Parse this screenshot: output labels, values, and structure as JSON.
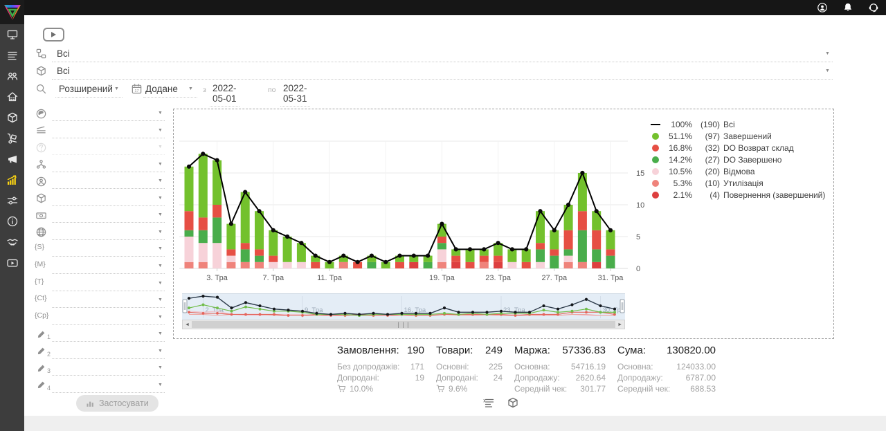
{
  "topbar": {
    "icons": [
      {
        "name": "user"
      },
      {
        "name": "bell"
      },
      {
        "name": "support"
      }
    ]
  },
  "sidebar": {
    "items": [
      {
        "icon": "monitor",
        "active": false
      },
      {
        "icon": "list",
        "active": false
      },
      {
        "icon": "people",
        "active": false
      },
      {
        "icon": "home",
        "active": false
      },
      {
        "icon": "package",
        "active": false
      },
      {
        "icon": "handtruck",
        "active": false
      },
      {
        "icon": "megaphone",
        "active": false
      },
      {
        "icon": "chart",
        "active": true
      },
      {
        "icon": "sliders",
        "active": false
      },
      {
        "icon": "info",
        "active": false
      },
      {
        "icon": "handshake",
        "active": false
      },
      {
        "icon": "video",
        "active": false
      }
    ]
  },
  "toolbar": {
    "status_filter": {
      "icon": "status-tree",
      "value": "Всі"
    },
    "product_filter": {
      "icon": "package",
      "value": "Всі"
    },
    "search_mode": {
      "icon": "search",
      "value": "Розширений"
    },
    "date_type": {
      "icon": "calendar",
      "calendar_day": "17",
      "value": "Додане"
    },
    "date_from_label": "з",
    "date_from": "2022-05-01",
    "date_to_label": "по",
    "date_to": "2022-05-31"
  },
  "filters": {
    "rows": [
      {
        "icon": "globe-solid",
        "value": ""
      },
      {
        "icon": "layers",
        "value": ""
      },
      {
        "icon": "question",
        "value": "",
        "disabled": true
      },
      {
        "icon": "hierarchy",
        "value": ""
      },
      {
        "icon": "person",
        "value": ""
      },
      {
        "icon": "package",
        "value": ""
      },
      {
        "icon": "money",
        "value": ""
      },
      {
        "icon": "globe",
        "value": ""
      },
      {
        "icon": "tag",
        "text": "{S}",
        "value": ""
      },
      {
        "icon": "tag",
        "text": "{M}",
        "value": ""
      },
      {
        "icon": "tag",
        "text": "{T}",
        "value": ""
      },
      {
        "icon": "tag",
        "text": "{Ct}",
        "value": ""
      },
      {
        "icon": "tag",
        "text": "{Cp}",
        "value": ""
      },
      {
        "icon": "pencil",
        "num": "1",
        "value": ""
      },
      {
        "icon": "pencil",
        "num": "2",
        "value": ""
      },
      {
        "icon": "pencil",
        "num": "3",
        "value": ""
      },
      {
        "icon": "pencil",
        "num": "4",
        "value": ""
      }
    ],
    "apply_label": "Застосувати"
  },
  "chart_data": {
    "type": "bar",
    "subtype": "stacked-bars-with-total-line",
    "x_days": [
      1,
      2,
      3,
      4,
      5,
      6,
      7,
      8,
      9,
      10,
      11,
      12,
      13,
      14,
      15,
      16,
      17,
      18,
      19,
      20,
      21,
      22,
      23,
      24,
      25,
      26,
      27,
      28,
      29,
      30,
      31
    ],
    "x_tick_labels": [
      {
        "day": 3,
        "label": "3. Тра"
      },
      {
        "day": 7,
        "label": "7. Тра"
      },
      {
        "day": 11,
        "label": "11. Тра"
      },
      {
        "day": 19,
        "label": "19. Тра"
      },
      {
        "day": 23,
        "label": "23. Тра"
      },
      {
        "day": 27,
        "label": "27. Тра"
      },
      {
        "day": 31,
        "label": "31. Тра"
      }
    ],
    "y_ticks": [
      0,
      5,
      10,
      15
    ],
    "ylim": [
      0,
      20
    ],
    "series": [
      {
        "name": "Всі",
        "type": "line",
        "color": "#000000",
        "percent": "100%",
        "count": 190,
        "values": [
          16,
          18,
          17,
          7,
          12,
          9,
          6,
          5,
          4,
          2,
          1,
          2,
          1,
          2,
          1,
          2,
          2,
          2,
          7,
          3,
          3,
          3,
          4,
          3,
          3,
          9,
          6,
          10,
          15,
          9,
          6
        ]
      },
      {
        "name": "Завершений",
        "type": "bar",
        "color": "#73c12d",
        "percent": "51.1%",
        "count": 97,
        "values": [
          7,
          10,
          7,
          4,
          8,
          6,
          4,
          4,
          3,
          1,
          1,
          1,
          0,
          1,
          1,
          1,
          1,
          1,
          2,
          1,
          2,
          1,
          2,
          2,
          2,
          5,
          3,
          4,
          6,
          3,
          3
        ]
      },
      {
        "name": "DO Возврат склад",
        "type": "bar",
        "color": "#e64f44",
        "percent": "16.8%",
        "count": 32,
        "values": [
          3,
          2,
          2,
          1,
          1,
          1,
          1,
          0,
          0,
          1,
          0,
          0,
          1,
          0,
          0,
          1,
          0,
          0,
          1,
          1,
          1,
          1,
          1,
          0,
          1,
          1,
          1,
          3,
          3,
          3,
          1
        ]
      },
      {
        "name": "DO Завершено",
        "type": "bar",
        "color": "#49ad4b",
        "percent": "14.2%",
        "count": 27,
        "values": [
          1,
          2,
          4,
          0,
          2,
          1,
          0,
          0,
          0,
          0,
          0,
          0,
          0,
          1,
          0,
          0,
          0,
          1,
          1,
          0,
          0,
          0,
          0,
          0,
          0,
          2,
          2,
          1,
          5,
          2,
          2
        ]
      },
      {
        "name": "Відмова",
        "type": "bar",
        "color": "#f7d2d9",
        "percent": "10.5%",
        "count": 20,
        "values": [
          4,
          3,
          4,
          1,
          0,
          0,
          1,
          1,
          1,
          0,
          0,
          0,
          0,
          0,
          0,
          0,
          0,
          0,
          2,
          0,
          0,
          0,
          0,
          1,
          0,
          1,
          0,
          1,
          0,
          0,
          0
        ]
      },
      {
        "name": "Утилізація",
        "type": "bar",
        "color": "#ef837b",
        "percent": "5.3%",
        "count": 10,
        "values": [
          1,
          1,
          0,
          1,
          1,
          1,
          0,
          0,
          0,
          0,
          0,
          1,
          0,
          0,
          0,
          0,
          0,
          0,
          1,
          0,
          0,
          1,
          0,
          0,
          0,
          0,
          0,
          1,
          1,
          0,
          0
        ]
      },
      {
        "name": "Повернення (завершений)",
        "type": "bar",
        "color": "#dd3f3f",
        "percent": "2.1%",
        "count": 4,
        "values": [
          0,
          0,
          0,
          0,
          0,
          0,
          0,
          0,
          0,
          0,
          0,
          0,
          0,
          0,
          0,
          0,
          1,
          0,
          0,
          1,
          0,
          0,
          1,
          0,
          0,
          0,
          0,
          0,
          0,
          1,
          0
        ]
      }
    ],
    "stack_order_bottom_to_top": [
      "Повернення (завершений)",
      "Утилізація",
      "Відмова",
      "DO Завершено",
      "DO Возврат склад",
      "Завершений"
    ],
    "navigator_labels": [
      {
        "day": 2,
        "label": "2. Тра"
      },
      {
        "day": 9,
        "label": "9. Тра"
      },
      {
        "day": 16,
        "label": "16. Тра"
      },
      {
        "day": 23,
        "label": "23. Тра"
      },
      {
        "day": 30,
        "label": "30. Тра"
      }
    ]
  },
  "stats": {
    "blocks": [
      {
        "title": "Замовлення:",
        "value": "190",
        "rows": [
          [
            "Без допродажів:",
            "171"
          ],
          [
            "Допродані:",
            "19"
          ]
        ],
        "cart_percent": "10.0%"
      },
      {
        "title": "Товари:",
        "value": "249",
        "rows": [
          [
            "Основні:",
            "225"
          ],
          [
            "Допродані:",
            "24"
          ]
        ],
        "cart_percent": "9.6%"
      },
      {
        "title": "Маржа:",
        "value": "57336.83",
        "rows": [
          [
            "Основна:",
            "54716.19"
          ],
          [
            "Допродажу:",
            "2620.64"
          ],
          [
            "Середній чек:",
            "301.77"
          ]
        ]
      },
      {
        "title": "Сума:",
        "value": "130820.00",
        "rows": [
          [
            "Основна:",
            "124033.00"
          ],
          [
            "Допродажу:",
            "6787.00"
          ],
          [
            "Середній чек:",
            "688.53"
          ]
        ]
      }
    ]
  },
  "footer": {
    "toggles": [
      {
        "icon": "list-stats"
      },
      {
        "icon": "package"
      }
    ]
  },
  "scrollbar": {
    "left_arrow": "◄",
    "right_arrow": "►",
    "grip": "| | |"
  }
}
